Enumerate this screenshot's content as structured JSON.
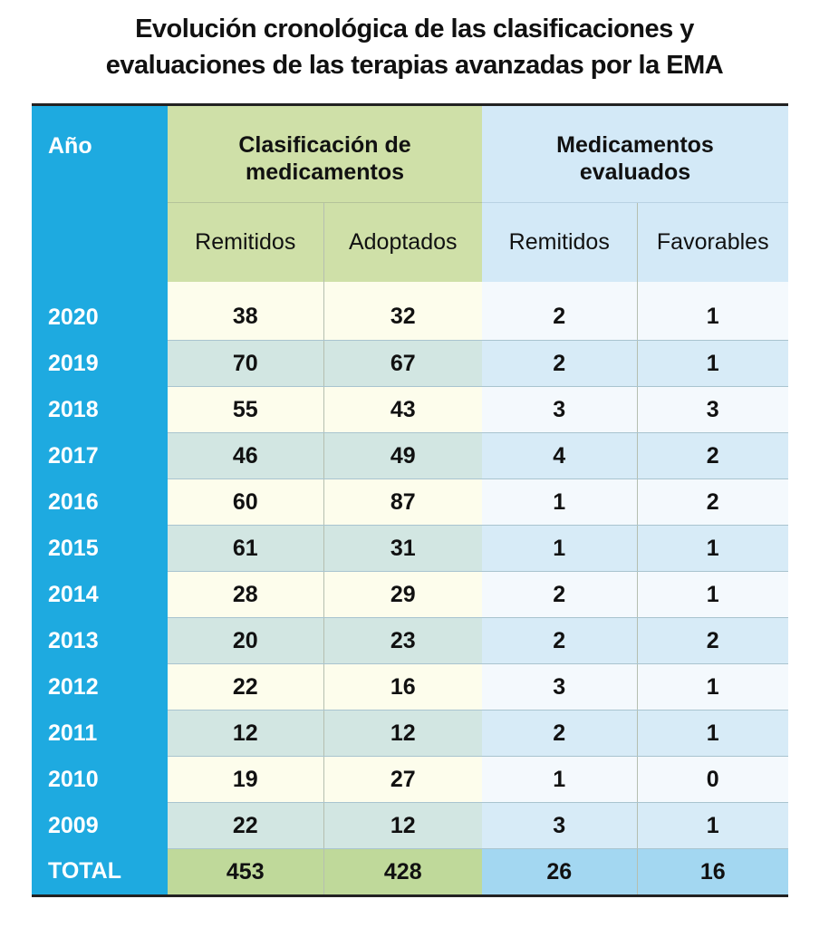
{
  "title_lines": [
    "Evolución cronológica de las clasificaciones y",
    "evaluaciones de las terapias avanzadas por la EMA"
  ],
  "table": {
    "header": {
      "year": "Año",
      "groups": [
        "Clasificación de medicamentos",
        "Medicamentos evaluados"
      ],
      "subheaders": [
        "Remitidos",
        "Adoptados",
        "Remitidos",
        "Favorables"
      ]
    },
    "rows": [
      [
        "2020",
        38,
        32,
        2,
        1
      ],
      [
        "2019",
        70,
        67,
        2,
        1
      ],
      [
        "2018",
        55,
        43,
        3,
        3
      ],
      [
        "2017",
        46,
        49,
        4,
        2
      ],
      [
        "2016",
        60,
        87,
        1,
        2
      ],
      [
        "2015",
        61,
        31,
        1,
        1
      ],
      [
        "2014",
        28,
        29,
        2,
        1
      ],
      [
        "2013",
        20,
        23,
        2,
        2
      ],
      [
        "2012",
        22,
        16,
        3,
        1
      ],
      [
        "2011",
        12,
        12,
        2,
        1
      ],
      [
        "2010",
        19,
        27,
        1,
        0
      ],
      [
        "2009",
        22,
        12,
        3,
        1
      ]
    ],
    "total": [
      "TOTAL",
      453,
      428,
      26,
      16
    ]
  }
}
